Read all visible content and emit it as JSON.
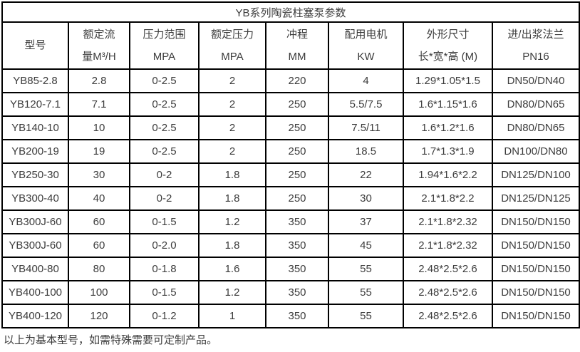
{
  "colors": {
    "border": "#000000",
    "text": "#3c3c3c",
    "background": "#ffffff"
  },
  "table": {
    "title": "YB系列陶瓷柱塞泵参数",
    "columns": [
      {
        "line1": "型号",
        "line2": ""
      },
      {
        "line1": "额定流",
        "line2": "量M³/H"
      },
      {
        "line1": "压力范围",
        "line2": "MPA"
      },
      {
        "line1": "额定压力",
        "line2": "MPA"
      },
      {
        "line1": "冲程",
        "line2": "MM"
      },
      {
        "line1": "配用电机",
        "line2": "KW"
      },
      {
        "line1": "外形尺寸",
        "line2": "长*宽*高 (M)"
      },
      {
        "line1": "进/出浆法兰",
        "line2": "PN16"
      }
    ],
    "rows": [
      [
        "YB85-2.8",
        "2.8",
        "0-2.5",
        "2",
        "220",
        "4",
        "1.29*1.05*1.5",
        "DN50/DN40"
      ],
      [
        "YB120-7.1",
        "7.1",
        "0-2.5",
        "2",
        "250",
        "5.5/7.5",
        "1.6*1.15*1.6",
        "DN80/DN65"
      ],
      [
        "YB140-10",
        "10",
        "0-2.5",
        "2",
        "250",
        "7.5/11",
        "1.6*1.2*1.6",
        "DN80/DN65"
      ],
      [
        "YB200-19",
        "19",
        "0-2.5",
        "2",
        "250",
        "18.5",
        "1.7*1.3*1.9",
        "DN100/DN80"
      ],
      [
        "YB250-30",
        "30",
        "0-2",
        "1.8",
        "250",
        "22",
        "1.94*1.6*2.2",
        "DN125/DN100"
      ],
      [
        "YB300-40",
        "40",
        "0-2",
        "1.8",
        "250",
        "30",
        "2.1*1.8*2.2",
        "DN125/DN125"
      ],
      [
        "YB300J-60",
        "60",
        "0-1.5",
        "1.2",
        "350",
        "37",
        "2.1*1.8*2.32",
        "DN150/DN150"
      ],
      [
        "YB300J-60",
        "60",
        "0-2.0",
        "1.8",
        "350",
        "45",
        "2.1*1.8*2.32",
        "DN150/DN150"
      ],
      [
        "YB400-80",
        "80",
        "0-1.8",
        "1.6",
        "350",
        "55",
        "2.48*2.5*2.6",
        "DN150/DN150"
      ],
      [
        "YB400-100",
        "100",
        "0-1.5",
        "1.2",
        "350",
        "55",
        "2.48*2.5*2.6",
        "DN150/DN150"
      ],
      [
        "YB400-120",
        "120",
        "0-1.2",
        "1",
        "350",
        "55",
        "2.48*2.5*2.6",
        "DN150/DN150"
      ]
    ]
  },
  "footer": {
    "note": "以上为基本型号，如需特殊需要可定制产品。"
  }
}
